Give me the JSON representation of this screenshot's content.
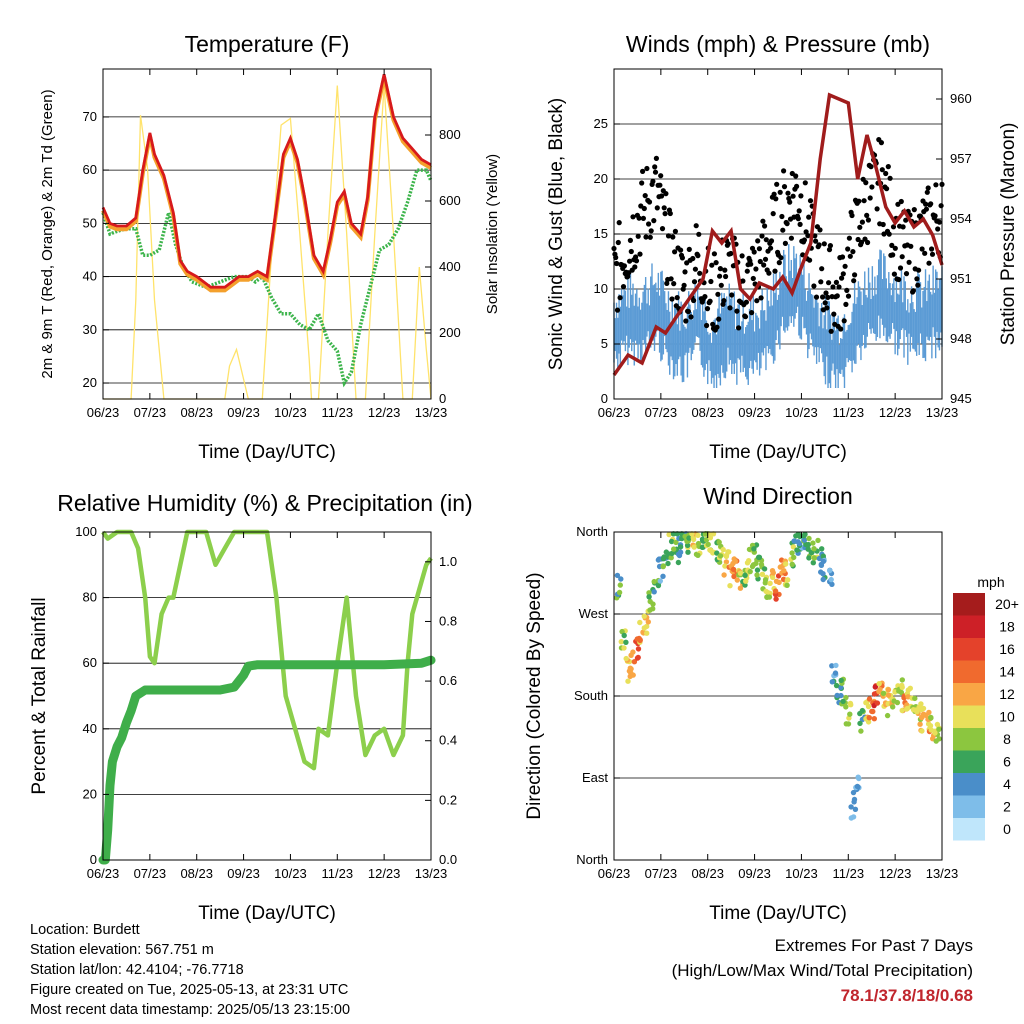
{
  "x_tick_labels": [
    "06/23",
    "07/23",
    "08/23",
    "09/23",
    "10/23",
    "11/23",
    "12/23",
    "13/23"
  ],
  "xlabel": "Time (Day/UTC)",
  "chart_data": [
    {
      "type": "line",
      "title": "Temperature (F)",
      "ylabel": "2m & 9m T (Red, Orange) & 2m Td (Green)",
      "ylabel_right": "Solar Insolation (Yellow)",
      "ylim": [
        17,
        79
      ],
      "yticks": [
        20,
        30,
        40,
        50,
        60,
        70
      ],
      "ylim_right": [
        0,
        1000
      ],
      "yticks_right": [
        0,
        200,
        400,
        600,
        800
      ],
      "colors": {
        "t2m": "#d7191c",
        "t9m": "#f4a02c",
        "td2m": "#3cb44b",
        "solar": "#ffe36b"
      },
      "series": [
        {
          "key": "t2m",
          "x": [
            0,
            0.15,
            0.3,
            0.5,
            0.7,
            0.85,
            1.0,
            1.1,
            1.3,
            1.5,
            1.65,
            1.8,
            2.0,
            2.3,
            2.6,
            2.9,
            3.1,
            3.3,
            3.5,
            3.7,
            3.85,
            4.0,
            4.15,
            4.3,
            4.5,
            4.7,
            4.85,
            5.0,
            5.15,
            5.3,
            5.5,
            5.65,
            5.8,
            6.0,
            6.2,
            6.4,
            6.6,
            6.8,
            7.0
          ],
          "values": [
            53,
            50,
            49.5,
            49.5,
            51,
            60,
            67,
            63,
            59,
            52,
            43,
            41,
            40,
            38,
            38,
            40,
            40,
            41,
            40,
            53,
            63,
            66,
            62,
            55,
            44,
            41,
            47,
            54,
            56,
            50,
            48,
            55,
            70,
            78,
            70,
            66,
            64,
            62,
            61
          ]
        },
        {
          "key": "td2m",
          "x": [
            0,
            0.15,
            0.3,
            0.5,
            0.7,
            0.85,
            1.0,
            1.2,
            1.4,
            1.55,
            1.7,
            1.9,
            2.2,
            2.5,
            2.8,
            3.1,
            3.25,
            3.4,
            3.6,
            3.8,
            4.0,
            4.2,
            4.4,
            4.6,
            4.8,
            5.0,
            5.15,
            5.3,
            5.5,
            5.7,
            5.9,
            6.1,
            6.3,
            6.5,
            6.7,
            6.9,
            7.0
          ],
          "values": [
            52,
            48,
            48.5,
            49,
            49,
            44,
            44,
            45,
            52,
            46,
            42,
            39,
            38,
            39,
            40,
            40,
            39,
            40,
            36,
            33,
            33,
            31,
            30,
            33,
            28,
            26,
            20,
            22,
            31,
            38,
            45,
            46,
            49,
            54,
            60,
            60,
            58
          ]
        },
        {
          "key": "solar",
          "x": [
            0,
            0.2,
            0.4,
            0.6,
            0.7,
            0.8,
            0.95,
            1.1,
            1.3,
            1.5,
            1.6,
            2.6,
            2.7,
            2.85,
            3.0,
            3.1,
            3.2,
            3.4,
            3.6,
            3.8,
            4.0,
            4.2,
            4.4,
            4.45,
            4.6,
            4.8,
            5.0,
            5.2,
            5.4,
            5.45,
            5.6,
            5.8,
            6.0,
            6.2,
            6.4,
            6.6,
            6.75,
            6.9,
            7.0
          ],
          "values": [
            0,
            0,
            0,
            0,
            300,
            860,
            700,
            300,
            0,
            0,
            0,
            0,
            100,
            150,
            60,
            0,
            0,
            0,
            450,
            830,
            850,
            500,
            120,
            0,
            0,
            500,
            950,
            500,
            0,
            0,
            0,
            500,
            950,
            500,
            0,
            0,
            400,
            150,
            0
          ]
        }
      ]
    },
    {
      "type": "scatter",
      "title": "Winds (mph) & Pressure (mb)",
      "ylabel": "Sonic Wind & Gust (Blue, Black)",
      "ylabel_right": "Station Pressure (Maroon)",
      "ylim": [
        0,
        30
      ],
      "yticks": [
        0,
        5,
        10,
        15,
        20,
        25
      ],
      "ylim_right": [
        945,
        961.5
      ],
      "yticks_right": [
        945,
        948,
        951,
        954,
        957,
        960
      ],
      "colors": {
        "wind": "#5b9bd5",
        "gust": "#000000",
        "pressure": "#a01c1c"
      },
      "series": [
        {
          "key": "wind",
          "x": [
            0,
            0.3,
            0.6,
            0.9,
            1.2,
            1.5,
            1.8,
            2.1,
            2.4,
            2.7,
            3.0,
            3.3,
            3.6,
            3.9,
            4.2,
            4.5,
            4.8,
            5.1,
            5.4,
            5.7,
            6.0,
            6.3,
            6.6,
            7.0
          ],
          "values": [
            8,
            9,
            9,
            10,
            8,
            7,
            9,
            6,
            8,
            7,
            7,
            8,
            11,
            12,
            9,
            7,
            6,
            8,
            10,
            11,
            10,
            9,
            9,
            10
          ]
        },
        {
          "key": "gust",
          "x": [
            0,
            0.3,
            0.6,
            0.9,
            1.2,
            1.5,
            1.8,
            2.1,
            2.4,
            2.7,
            3.0,
            3.3,
            3.6,
            3.9,
            4.2,
            4.5,
            4.8,
            5.1,
            5.4,
            5.7,
            6.0,
            6.3,
            6.6,
            7.0
          ],
          "values": [
            11,
            14,
            17,
            19,
            13,
            10,
            13,
            9,
            12,
            10,
            11,
            14,
            17,
            19,
            14,
            11,
            9,
            14,
            18,
            20,
            15,
            13,
            15,
            17
          ]
        },
        {
          "key": "pressure",
          "x": [
            0,
            0.3,
            0.6,
            0.9,
            1.1,
            1.3,
            1.6,
            1.9,
            2.1,
            2.3,
            2.5,
            2.7,
            2.9,
            3.1,
            3.4,
            3.6,
            3.8,
            4.0,
            4.2,
            4.4,
            4.6,
            4.8,
            5.0,
            5.2,
            5.4,
            5.6,
            5.8,
            6.0,
            6.2,
            6.4,
            6.6,
            6.8,
            7.0
          ],
          "values": [
            946.2,
            947.2,
            946.8,
            948.6,
            948.3,
            949.0,
            950.0,
            951.0,
            953.4,
            952.8,
            953.4,
            950.5,
            950.0,
            950.8,
            950.5,
            951.1,
            950.3,
            951.6,
            952.8,
            957.0,
            960.2,
            960.0,
            959.8,
            956.0,
            958.2,
            956.5,
            954.6,
            953.8,
            954.4,
            953.6,
            954.0,
            953.2,
            951.7
          ]
        }
      ]
    },
    {
      "type": "line",
      "title": "Relative Humidity (%) & Precipitation (in)",
      "ylabel": "Percent & Total Rainfall",
      "ylim": [
        0,
        100
      ],
      "yticks": [
        0,
        20,
        40,
        60,
        80,
        100
      ],
      "ylim_right": [
        0,
        1.1
      ],
      "yticks_right": [
        "0.0",
        "0.2",
        "0.4",
        "0.6",
        "0.8",
        "1.0"
      ],
      "colors": {
        "rh": "#8ccf4c",
        "precip": "#3fae4a"
      },
      "series": [
        {
          "key": "rh",
          "x": [
            0,
            0.1,
            0.3,
            0.5,
            0.6,
            0.75,
            0.9,
            1.0,
            1.1,
            1.25,
            1.4,
            1.5,
            1.8,
            2.0,
            2.2,
            2.4,
            2.6,
            2.8,
            3.0,
            3.1,
            3.3,
            3.5,
            3.7,
            3.9,
            4.1,
            4.3,
            4.5,
            4.6,
            4.8,
            5.0,
            5.2,
            5.4,
            5.6,
            5.8,
            6.0,
            6.2,
            6.4,
            6.5,
            6.6,
            6.8,
            6.9,
            7.0
          ],
          "values": [
            100,
            98,
            100,
            100,
            100,
            95,
            80,
            62,
            60,
            75,
            80,
            80,
            100,
            100,
            100,
            90,
            95,
            100,
            100,
            100,
            100,
            100,
            80,
            50,
            40,
            30,
            28,
            40,
            38,
            60,
            80,
            50,
            32,
            38,
            40,
            32,
            38,
            60,
            75,
            85,
            90,
            92
          ]
        },
        {
          "key": "precip",
          "x": [
            0,
            0.05,
            0.1,
            0.15,
            0.2,
            0.3,
            0.4,
            0.5,
            0.6,
            0.7,
            0.9,
            1.2,
            2.0,
            2.5,
            2.8,
            3.0,
            3.1,
            3.3,
            3.5,
            4.0,
            5.0,
            6.0,
            6.8,
            7.0
          ],
          "values": [
            0,
            0,
            0.1,
            0.25,
            0.33,
            0.38,
            0.41,
            0.46,
            0.5,
            0.55,
            0.57,
            0.57,
            0.57,
            0.57,
            0.58,
            0.62,
            0.65,
            0.655,
            0.655,
            0.655,
            0.655,
            0.655,
            0.66,
            0.67
          ]
        }
      ]
    },
    {
      "type": "scatter",
      "title": "Wind Direction",
      "ylabel": "Direction (Colored By Speed)",
      "ylim": [
        0,
        360
      ],
      "yticks": [
        0,
        90,
        180,
        270,
        360
      ],
      "ytick_labels": [
        "North",
        "East",
        "South",
        "West",
        "North"
      ],
      "legend_title": "mph",
      "legend_labels": [
        "20+",
        "18",
        "16",
        "14",
        "12",
        "10",
        "8",
        "6",
        "4",
        "2",
        "0"
      ],
      "legend_colors": [
        "#a51c1c",
        "#cd2027",
        "#e4422b",
        "#f06a2e",
        "#f9a645",
        "#e8e05a",
        "#8cc63f",
        "#3aa45a",
        "#4a8ec9",
        "#7ebde9",
        "#bfe6fb"
      ],
      "series": [
        {
          "name": "direction",
          "x": [
            0.1,
            0.2,
            0.3,
            0.4,
            0.5,
            0.6,
            0.7,
            0.8,
            0.9,
            1.0,
            1.1,
            1.2,
            1.3,
            1.4,
            1.5,
            1.6,
            1.7,
            1.8,
            1.9,
            2.0,
            2.1,
            2.2,
            2.3,
            2.4,
            2.5,
            2.6,
            2.7,
            2.8,
            2.9,
            3.0,
            3.1,
            3.2,
            3.3,
            3.4,
            3.5,
            3.6,
            3.7,
            3.8,
            3.9,
            4.0,
            4.1,
            4.2,
            4.3,
            4.4,
            4.5,
            4.6,
            4.7,
            4.8,
            4.9,
            5.0,
            5.1,
            5.2,
            5.3,
            5.4,
            5.5,
            5.6,
            5.7,
            5.8,
            5.9,
            6.0,
            6.1,
            6.2,
            6.3,
            6.4,
            6.5,
            6.6,
            6.7,
            6.8,
            6.9
          ],
          "values": [
            300,
            240,
            210,
            215,
            230,
            250,
            260,
            285,
            300,
            320,
            335,
            345,
            350,
            340,
            355,
            350,
            355,
            345,
            350,
            355,
            350,
            340,
            345,
            325,
            315,
            320,
            310,
            310,
            330,
            335,
            320,
            310,
            300,
            305,
            300,
            320,
            315,
            335,
            350,
            355,
            345,
            340,
            345,
            330,
            320,
            310,
            200,
            180,
            185,
            160,
            60,
            80,
            150,
            160,
            165,
            180,
            190,
            170,
            175,
            180,
            185,
            170,
            175,
            165,
            160,
            155,
            150,
            145,
            140
          ],
          "speeds": [
            6,
            8,
            11,
            13,
            15,
            12,
            10,
            8,
            6,
            4,
            6,
            8,
            7,
            5,
            6,
            8,
            10,
            9,
            7,
            8,
            9,
            7,
            9,
            11,
            12,
            13,
            10,
            8,
            9,
            6,
            7,
            8,
            9,
            11,
            14,
            13,
            10,
            8,
            5,
            4,
            6,
            7,
            8,
            5,
            4,
            3,
            4,
            5,
            7,
            9,
            4,
            3,
            6,
            10,
            14,
            16,
            12,
            10,
            11,
            9,
            10,
            12,
            11,
            9,
            10,
            11,
            12,
            10,
            9
          ]
        }
      ]
    }
  ],
  "info": {
    "location": "Location: Burdett",
    "elevation": "Station elevation: 567.751 m",
    "latlon": "Station lat/lon: 42.4104; -76.7718",
    "created": "Figure created on Tue, 2025-05-13, at 23:31 UTC",
    "recent": "Most recent data timestamp: 2025/05/13 23:15:00"
  },
  "extremes": {
    "title": "Extremes For Past 7 Days",
    "subtitle": "(High/Low/Max Wind/Total Precipitation)",
    "values": "78.1/37.8/18/0.68"
  }
}
